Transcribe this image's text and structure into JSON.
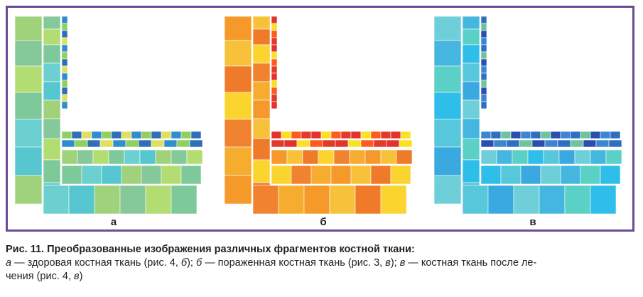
{
  "figure": {
    "panels": [
      {
        "label": "а",
        "palette": [
          "#7dc99a",
          "#6ccfd0",
          "#56c6cf",
          "#9fd27a",
          "#85c99a",
          "#b2dd72"
        ],
        "edge_palette": [
          "#2f8dd0",
          "#8fd05f",
          "#2e6fb8",
          "#e0e060"
        ]
      },
      {
        "label": "б",
        "palette": [
          "#f59a2a",
          "#f7c23a",
          "#ef7a2a",
          "#fbd42e",
          "#f08230",
          "#f6ad2f"
        ],
        "edge_palette": [
          "#e3322b",
          "#fbe122",
          "#ff5a1f",
          "#e03a2a"
        ]
      },
      {
        "label": "в",
        "palette": [
          "#2fbde9",
          "#57c7dc",
          "#3aa9df",
          "#6fcfd9",
          "#45b6e0",
          "#5bd0c6"
        ],
        "edge_palette": [
          "#2f6fc2",
          "#6cc59d",
          "#2b4fb0",
          "#3a86d2"
        ]
      }
    ]
  },
  "caption": {
    "title": "Рис. 11. Преобразованные изображения различных фрагментов костной ткани:",
    "part1_label": "а",
    "part1_text": " — здоровая костная ткань (рис. 4, ",
    "part1_ref": "б",
    "part1_end": "); ",
    "part2_label": "б",
    "part2_text": " — пораженная костная ткань (рис. 3, ",
    "part2_ref": "в",
    "part2_end": "); ",
    "part3_label": "в",
    "part3_text": " — костная ткань после ле-",
    "line2_text": "чения (рис. 4, ",
    "line2_ref": "в",
    "line2_end": ")"
  }
}
